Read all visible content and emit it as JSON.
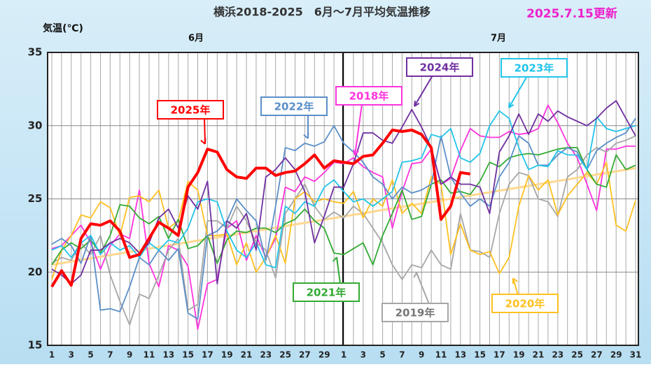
{
  "chart_data": {
    "type": "line",
    "title": "横浜2018-2025　6月～7月平均気温推移",
    "subtitle": "2025.7.15更新",
    "y_label": "気温(℃)",
    "months": [
      "6月",
      "7月"
    ],
    "categories": [
      "1",
      null,
      "3",
      null,
      "5",
      null,
      "7",
      null,
      "9",
      null,
      "11",
      null,
      "13",
      null,
      "15",
      null,
      "17",
      null,
      "19",
      null,
      "21",
      null,
      "23",
      null,
      "25",
      null,
      "27",
      null,
      "29",
      null,
      "1",
      null,
      "3",
      null,
      "5",
      null,
      "7",
      null,
      "9",
      null,
      "11",
      null,
      "13",
      null,
      "15",
      null,
      "17",
      null,
      "19",
      null,
      "21",
      null,
      "23",
      null,
      "25",
      null,
      "27",
      null,
      "29",
      null,
      "31"
    ],
    "ylim": [
      15,
      35
    ],
    "yticks": [
      15,
      20,
      25,
      30,
      35
    ],
    "grid": true,
    "trend": {
      "color": "#ffd890",
      "values": [
        20.5,
        27.1
      ]
    },
    "series": [
      {
        "name": "2018年",
        "color": "#ff33dd",
        "values": [
          21.6,
          21.8,
          22.5,
          23.2,
          22.0,
          20.2,
          21.8,
          22.6,
          22.3,
          25.6,
          20.6,
          19.0,
          21.8,
          21.5,
          20.4,
          16.1,
          19.2,
          19.5,
          23.0,
          23.5,
          20.8,
          22.5,
          21.0,
          22.3,
          25.8,
          25.5,
          26.5,
          26.2,
          26.8,
          27.5,
          27.4,
          27.8,
          27.2,
          26.8,
          26.5,
          23.0,
          25.5,
          27.4,
          27.5,
          28.4,
          26.0,
          26.4,
          28.3,
          29.8,
          29.3,
          29.2,
          29.2,
          29.6,
          29.4,
          29.5,
          29.8,
          31.4,
          30.2,
          28.8,
          27.8,
          26.0,
          24.2,
          28.4,
          28.4,
          28.6,
          28.6
        ]
      },
      {
        "name": "2019年",
        "color": "#a6a6a6",
        "values": [
          20.6,
          21.0,
          20.8,
          22.0,
          21.2,
          22.5,
          19.8,
          18.0,
          16.4,
          18.5,
          18.2,
          19.8,
          21.5,
          22.3,
          17.4,
          17.8,
          23.5,
          23.5,
          23.0,
          24.5,
          23.5,
          22.0,
          21.5,
          19.6,
          24.0,
          25.0,
          26.0,
          24.5,
          23.6,
          24.1,
          23.7,
          24.5,
          24.0,
          23.0,
          22.0,
          20.5,
          19.5,
          20.5,
          20.3,
          21.5,
          20.5,
          20.2,
          24.0,
          21.5,
          21.4,
          21.0,
          24.0,
          26.0,
          26.8,
          26.6,
          25.0,
          24.8,
          23.8,
          26.5,
          27.0,
          28.0,
          28.5,
          28.2,
          28.8,
          29.0,
          29.3
        ]
      },
      {
        "name": "2020年",
        "color": "#ffc020",
        "values": [
          19.5,
          21.5,
          22.5,
          23.9,
          23.7,
          24.8,
          24.4,
          22.5,
          25.1,
          25.2,
          24.8,
          25.6,
          23.0,
          23.5,
          26.2,
          25.6,
          22.5,
          22.5,
          22.6,
          20.5,
          22.0,
          20.0,
          21.0,
          22.5,
          20.6,
          25.0,
          25.5,
          24.8,
          25.0,
          24.8,
          24.7,
          25.5,
          23.7,
          25.0,
          24.5,
          26.3,
          24.0,
          24.7,
          24.0,
          26.5,
          26.0,
          21.2,
          23.3,
          21.5,
          21.2,
          21.4,
          19.9,
          21.0,
          24.5,
          26.6,
          25.6,
          26.3,
          23.9,
          25.2,
          26.0,
          26.8,
          26.0,
          27.5,
          23.2,
          22.8,
          24.9
        ]
      },
      {
        "name": "2021年",
        "color": "#33aa33",
        "values": [
          20.5,
          21.5,
          22.0,
          21.6,
          22.2,
          21.3,
          22.5,
          24.6,
          24.5,
          23.7,
          23.3,
          23.8,
          22.3,
          23.6,
          21.6,
          21.8,
          22.5,
          20.6,
          22.2,
          22.8,
          22.7,
          23.0,
          23.0,
          22.7,
          23.3,
          23.6,
          24.3,
          23.5,
          23.0,
          21.3,
          21.2,
          21.6,
          22.0,
          20.5,
          22.5,
          24.0,
          25.6,
          23.6,
          23.8,
          26.0,
          26.3,
          25.4,
          25.5,
          25.3,
          26.2,
          27.5,
          27.2,
          27.8,
          28.0,
          28.1,
          28.0,
          28.2,
          28.4,
          28.5,
          28.5,
          27.0,
          26.0,
          25.8,
          28.0,
          27.0,
          27.3
        ]
      },
      {
        "name": "2022年",
        "color": "#5b8fc8",
        "values": [
          21.9,
          22.3,
          21.8,
          20.6,
          22.5,
          17.4,
          17.5,
          17.3,
          19.0,
          21.0,
          20.5,
          21.5,
          20.8,
          21.6,
          17.2,
          16.8,
          22.5,
          22.8,
          23.5,
          25.0,
          24.2,
          23.5,
          20.8,
          24.5,
          28.5,
          28.3,
          28.8,
          28.6,
          28.9,
          30.0,
          28.8,
          28.2,
          27.5,
          26.5,
          26.0,
          25.0,
          25.8,
          25.4,
          25.6,
          26.0,
          29.3,
          26.5,
          25.4,
          24.5,
          25.0,
          24.5,
          26.5,
          27.5,
          29.3,
          28.8,
          27.3,
          27.3,
          28.0,
          28.5,
          28.2,
          27.0,
          28.3,
          28.8,
          29.2,
          29.5,
          30.5
        ]
      },
      {
        "name": "2023年",
        "color": "#22c4ea",
        "values": [
          21.5,
          21.8,
          21.0,
          22.0,
          22.5,
          21.2,
          22.0,
          21.5,
          21.8,
          21.0,
          22.0,
          21.5,
          22.2,
          22.0,
          23.0,
          24.8,
          25.0,
          24.8,
          22.8,
          21.5,
          21.0,
          22.0,
          20.5,
          20.3,
          24.5,
          24.0,
          24.8,
          24.5,
          25.8,
          26.3,
          25.5,
          24.8,
          25.0,
          24.5,
          25.0,
          25.5,
          27.5,
          27.6,
          27.8,
          29.4,
          29.2,
          29.8,
          27.8,
          27.5,
          28.1,
          30.0,
          31.0,
          30.5,
          28.5,
          27.0,
          27.3,
          27.2,
          28.3,
          28.0,
          28.0,
          27.0,
          30.6,
          29.8,
          29.6,
          29.8,
          30.0
        ]
      },
      {
        "name": "2024年",
        "color": "#7030a0",
        "values": [
          20.2,
          19.8,
          19.2,
          19.8,
          21.5,
          21.5,
          22.0,
          22.3,
          22.0,
          21.3,
          22.0,
          23.7,
          24.3,
          23.0,
          25.2,
          24.3,
          26.2,
          19.2,
          23.5,
          23.0,
          24.0,
          21.5,
          26.5,
          27.0,
          27.8,
          27.0,
          25.5,
          22.0,
          23.8,
          25.8,
          25.8,
          27.4,
          29.5,
          29.5,
          29.0,
          28.8,
          29.9,
          31.1,
          29.9,
          28.5,
          26.0,
          26.5,
          26.0,
          26.0,
          25.8,
          24.0,
          28.2,
          29.3,
          30.8,
          29.4,
          30.8,
          30.3,
          31.0,
          30.6,
          30.3,
          30.0,
          30.5,
          31.2,
          31.7,
          30.5,
          29.3
        ]
      },
      {
        "name": "2025年",
        "color": "#ff0000",
        "values": [
          19.0,
          20.1,
          19.1,
          22.3,
          23.3,
          23.2,
          23.5,
          22.8,
          21.0,
          21.2,
          22.3,
          23.4,
          23.0,
          22.5,
          25.8,
          26.8,
          28.4,
          28.2,
          27.0,
          26.5,
          26.4,
          27.1,
          27.1,
          26.6,
          26.8,
          26.9,
          27.4,
          28.0,
          27.1,
          27.6,
          27.5,
          27.4,
          27.9,
          28.0,
          28.8,
          29.7,
          29.6,
          29.7,
          29.4,
          28.5,
          23.6,
          24.5,
          26.8,
          26.7,
          null,
          null,
          null,
          null,
          null,
          null,
          null,
          null,
          null,
          null,
          null,
          null,
          null,
          null,
          null,
          null,
          null
        ]
      }
    ]
  }
}
